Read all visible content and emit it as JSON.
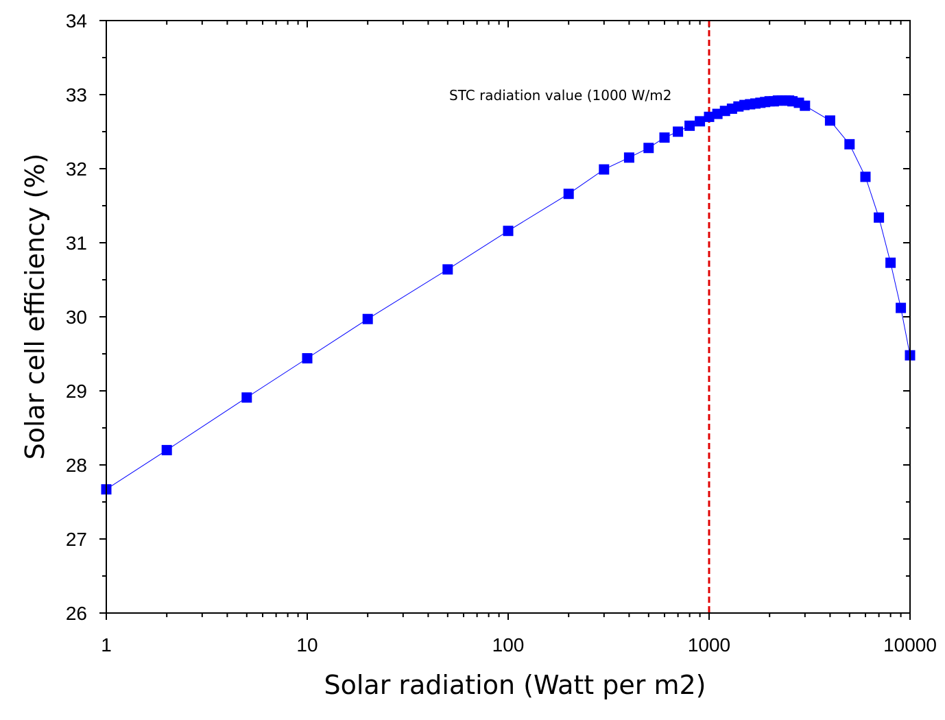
{
  "chart_data": {
    "type": "scatter",
    "xscale": "log",
    "xlim": [
      1,
      10000
    ],
    "ylim": [
      26,
      34
    ],
    "xlabel": "Solar radiation (Watt per m2)",
    "ylabel": "Solar cell efficiency (%)",
    "xticks": [
      1,
      10,
      100,
      1000,
      10000
    ],
    "xtick_labels": [
      "1",
      "10",
      "100",
      "1000",
      "10000"
    ],
    "yticks": [
      26,
      27,
      28,
      29,
      30,
      31,
      32,
      33,
      34
    ],
    "ytick_labels": [
      "26",
      "27",
      "28",
      "29",
      "30",
      "31",
      "32",
      "33",
      "34"
    ],
    "grid": false,
    "series": [
      {
        "color": "#0000ff",
        "marker": "square",
        "line": true,
        "x": [
          1,
          2,
          5,
          10,
          20,
          50,
          100,
          200,
          300,
          400,
          500,
          600,
          700,
          800,
          900,
          1000,
          1100,
          1200,
          1300,
          1400,
          1500,
          1600,
          1700,
          1800,
          1900,
          2000,
          2100,
          2200,
          2300,
          2400,
          2500,
          2600,
          2800,
          3000,
          4000,
          5000,
          6000,
          7000,
          8000,
          9000,
          10000
        ],
        "y": [
          27.67,
          28.2,
          28.91,
          29.44,
          29.97,
          30.64,
          31.16,
          31.66,
          31.99,
          32.15,
          32.28,
          32.42,
          32.5,
          32.58,
          32.64,
          32.7,
          32.74,
          32.78,
          32.81,
          32.84,
          32.86,
          32.87,
          32.88,
          32.89,
          32.9,
          32.91,
          32.91,
          32.92,
          32.92,
          32.92,
          32.92,
          32.91,
          32.89,
          32.85,
          32.65,
          32.33,
          31.89,
          31.34,
          30.73,
          30.12,
          29.48
        ]
      }
    ],
    "reference_line": {
      "x": 1000,
      "color": "#e00000",
      "style": "dashed"
    },
    "annotations": [
      {
        "text": "STC radiation value (1000 W/m2"
      }
    ]
  }
}
